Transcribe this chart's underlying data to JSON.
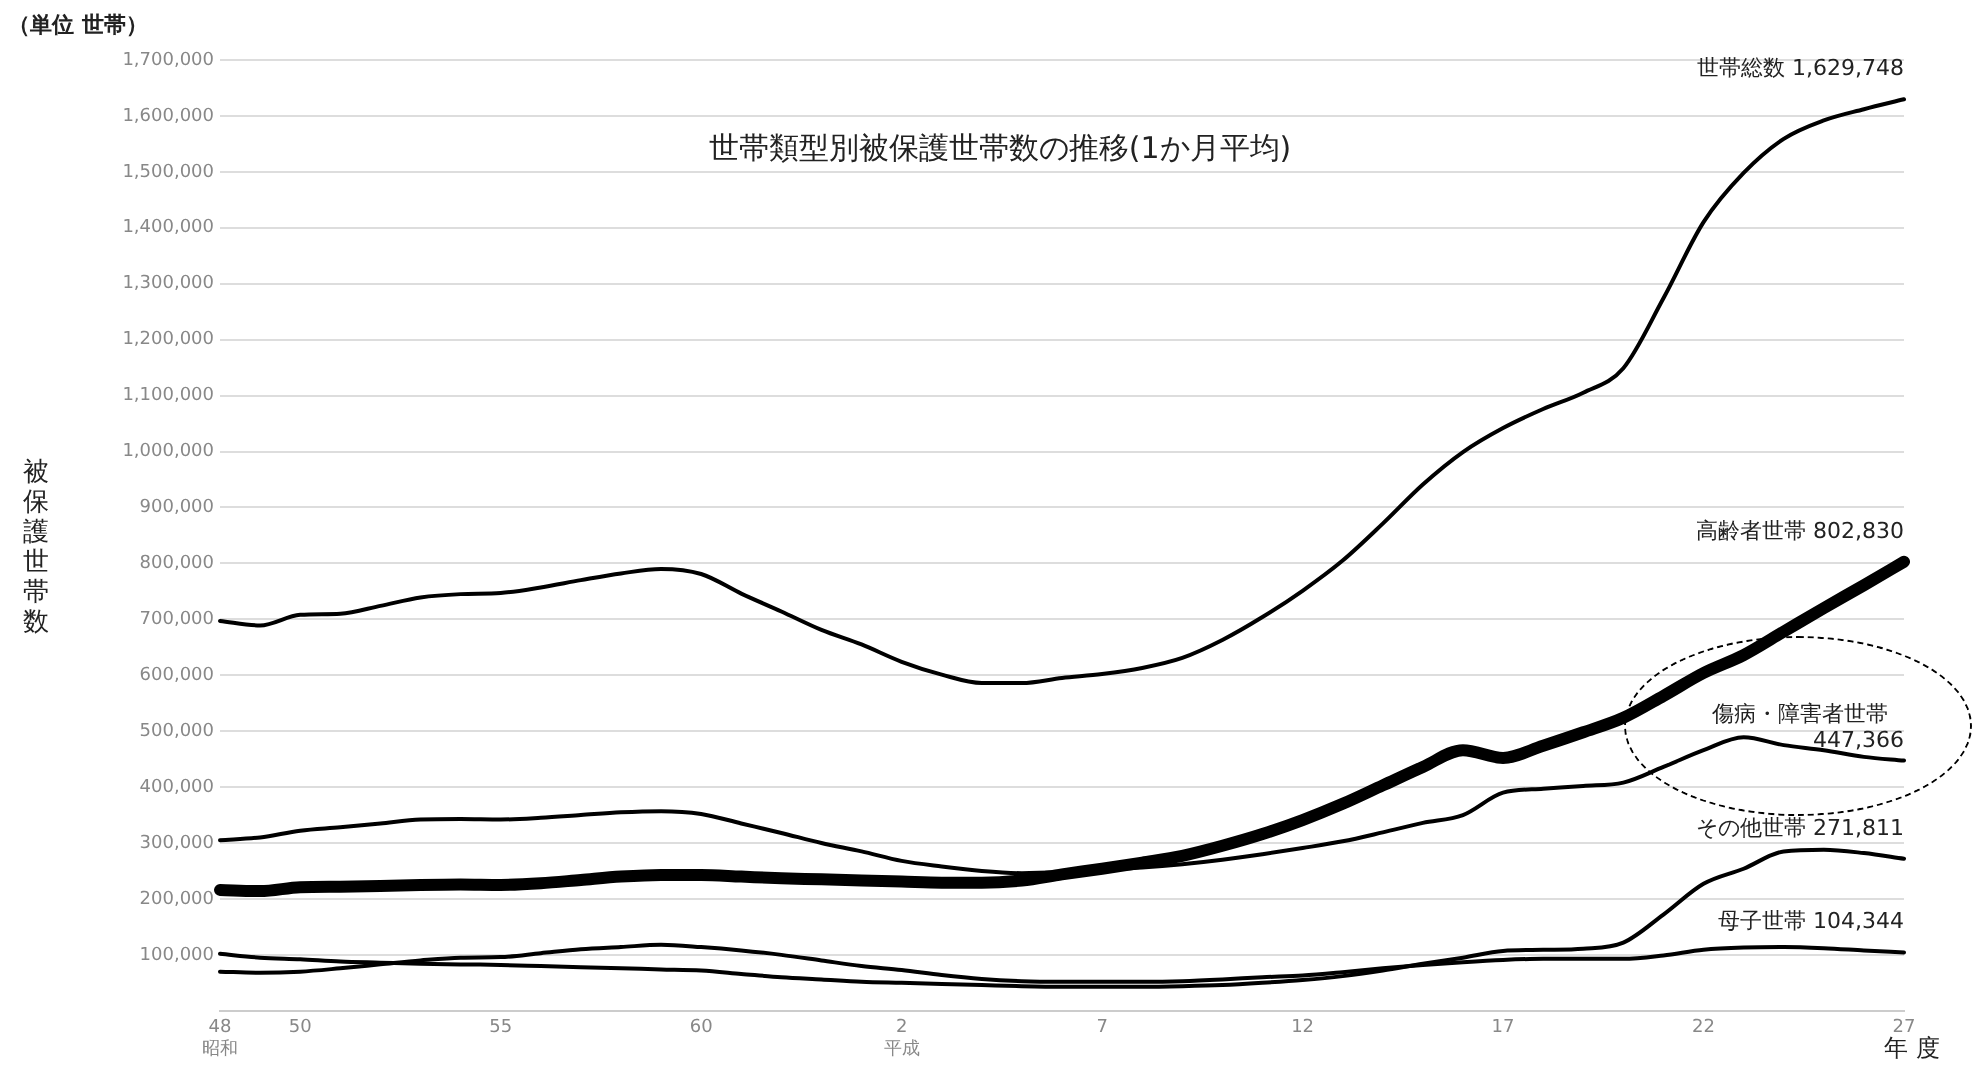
{
  "chart_data": {
    "type": "line",
    "title": "世帯類型別被保護世帯数の推移(1か月平均)",
    "xlabel": "年 度",
    "ylabel": "被保護世帯数",
    "annotations": [
      "（単位 世帯）"
    ],
    "categories": [
      "48\n昭和",
      null,
      "50",
      null,
      null,
      null,
      null,
      "55",
      null,
      null,
      null,
      null,
      "60",
      null,
      null,
      null,
      null,
      "2\n平成",
      null,
      null,
      null,
      null,
      "7",
      null,
      null,
      null,
      null,
      "12",
      null,
      null,
      null,
      null,
      "17",
      null,
      null,
      null,
      null,
      "22",
      null,
      null,
      null,
      null,
      "27"
    ],
    "series": [
      {
        "name": "世帯総数",
        "color": "#000000",
        "values": [
          697000,
          689000,
          708000,
          710000,
          724000,
          739000,
          745000,
          747000,
          757000,
          770000,
          782000,
          790000,
          781000,
          746000,
          714000,
          681000,
          655000,
          624000,
          601000,
          586000,
          586000,
          595000,
          602000,
          613000,
          631000,
          663000,
          704000,
          751000,
          805000,
          871000,
          941000,
          999000,
          1042000,
          1076000,
          1105000,
          1149000,
          1274000,
          1410000,
          1498000,
          1559000,
          1592000,
          1612000,
          1629748
        ],
        "value_labels": [
          null,
          null,
          null,
          null,
          null,
          null,
          null,
          null,
          null,
          null,
          null,
          null,
          null,
          null,
          null,
          null,
          null,
          null,
          null,
          null,
          null,
          null,
          null,
          null,
          null,
          null,
          null,
          null,
          null,
          null,
          null,
          null,
          null,
          null,
          null,
          null,
          null,
          null,
          null,
          null,
          null,
          null,
          "1,629,748"
        ]
      },
      {
        "name": "高齢者世帯",
        "color": "#000000",
        "values": [
          216000,
          214000,
          221000,
          222000,
          223000,
          225000,
          226000,
          225000,
          228000,
          234000,
          240000,
          243000,
          243000,
          240000,
          237000,
          235000,
          233000,
          231000,
          229000,
          229000,
          233000,
          244000,
          254000,
          265000,
          277000,
          295000,
          316000,
          341000,
          370000,
          403000,
          436000,
          466000,
          452000,
          474000,
          498000,
          524000,
          563000,
          604000,
          636000,
          678000,
          720000,
          761000,
          802830
        ],
        "value_labels": [
          null,
          null,
          null,
          null,
          null,
          null,
          null,
          null,
          null,
          null,
          null,
          null,
          null,
          null,
          null,
          null,
          null,
          null,
          null,
          null,
          null,
          null,
          null,
          null,
          null,
          null,
          null,
          null,
          null,
          null,
          null,
          null,
          null,
          null,
          null,
          null,
          null,
          null,
          null,
          null,
          null,
          null,
          "802,830"
        ]
      },
      {
        "name": "傷病・障害者世帯",
        "color": "#000000",
        "values": [
          305000,
          310000,
          322000,
          328000,
          335000,
          342000,
          343000,
          342000,
          345000,
          350000,
          355000,
          357000,
          352000,
          335000,
          318000,
          300000,
          285000,
          268000,
          258000,
          250000,
          246000,
          248000,
          252000,
          256000,
          262000,
          270000,
          280000,
          291000,
          303000,
          319000,
          336000,
          350000,
          390000,
          397000,
          402000,
          408000,
          436000,
          466000,
          489000,
          475000,
          466000,
          454000,
          447366
        ],
        "value_labels": [
          null,
          null,
          null,
          null,
          null,
          null,
          null,
          null,
          null,
          null,
          null,
          null,
          null,
          null,
          null,
          null,
          null,
          null,
          null,
          null,
          null,
          null,
          null,
          null,
          null,
          null,
          null,
          null,
          null,
          null,
          null,
          null,
          null,
          null,
          null,
          null,
          null,
          null,
          null,
          null,
          null,
          null,
          "447,366"
        ]
      },
      {
        "name": "母子世帯",
        "color": "#000000",
        "values": [
          70000,
          68000,
          70000,
          76000,
          83000,
          90000,
          95000,
          96000,
          103000,
          110000,
          114000,
          118000,
          114000,
          108000,
          100000,
          90000,
          80000,
          73000,
          64000,
          57000,
          53000,
          52000,
          52000,
          52000,
          53000,
          56000,
          60000,
          63000,
          69000,
          76000,
          82000,
          87000,
          91000,
          93000,
          93000,
          93000,
          99000,
          109000,
          113000,
          114000,
          112000,
          108000,
          104344
        ],
        "value_labels": [
          null,
          null,
          null,
          null,
          null,
          null,
          null,
          null,
          null,
          null,
          null,
          null,
          null,
          null,
          null,
          null,
          null,
          null,
          null,
          null,
          null,
          null,
          null,
          null,
          null,
          null,
          null,
          null,
          null,
          null,
          null,
          null,
          null,
          null,
          null,
          null,
          null,
          null,
          null,
          null,
          null,
          null,
          "104,344"
        ]
      },
      {
        "name": "その他世帯",
        "color": "#000000",
        "values": [
          102000,
          95000,
          92000,
          88000,
          86000,
          84000,
          83000,
          82000,
          80000,
          78000,
          76000,
          74000,
          72000,
          66000,
          60000,
          56000,
          52000,
          50000,
          48000,
          46000,
          44000,
          43000,
          43000,
          43000,
          44000,
          46000,
          50000,
          55000,
          62000,
          72000,
          84000,
          95000,
          107000,
          109000,
          111000,
          122000,
          172000,
          227000,
          254000,
          285000,
          288000,
          282000,
          271811
        ],
        "value_labels": [
          null,
          null,
          null,
          null,
          null,
          null,
          null,
          null,
          null,
          null,
          null,
          null,
          null,
          null,
          null,
          null,
          null,
          null,
          null,
          null,
          null,
          null,
          null,
          null,
          null,
          null,
          null,
          null,
          null,
          null,
          null,
          null,
          null,
          null,
          null,
          null,
          null,
          null,
          null,
          null,
          null,
          null,
          "271,811"
        ]
      }
    ],
    "ylim": [
      0,
      1700000
    ],
    "yticks": [
      {
        "value": 100000,
        "label": "100,000"
      },
      {
        "value": 200000,
        "label": "200,000"
      },
      {
        "value": 300000,
        "label": "300,000"
      },
      {
        "value": 400000,
        "label": "400,000"
      },
      {
        "value": 500000,
        "label": "500,000"
      },
      {
        "value": 600000,
        "label": "600,000"
      },
      {
        "value": 700000,
        "label": "700,000"
      },
      {
        "value": 800000,
        "label": "800,000"
      },
      {
        "value": 900000,
        "label": "900,000"
      },
      {
        "value": 1000000,
        "label": "1,000,000"
      },
      {
        "value": 1100000,
        "label": "1,100,000"
      },
      {
        "value": 1200000,
        "label": "1,200,000"
      },
      {
        "value": 1300000,
        "label": "1,300,000"
      },
      {
        "value": 1400000,
        "label": "1,400,000"
      },
      {
        "value": 1500000,
        "label": "1,500,000"
      },
      {
        "value": 1600000,
        "label": "1,600,000"
      },
      {
        "value": 1700000,
        "label": "1,700,000"
      }
    ],
    "grid": "y",
    "legend": false,
    "marker": "none",
    "line_style": "solid"
  }
}
